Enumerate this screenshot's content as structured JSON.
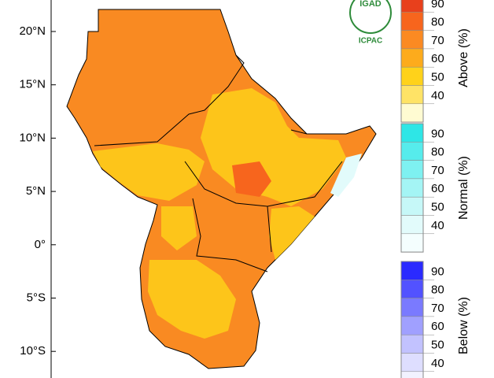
{
  "map": {
    "latitude_labels": [
      "20°N",
      "15°N",
      "10°N",
      "5°N",
      "0°",
      "5°S",
      "10°S"
    ],
    "logo": {
      "text": "IGAD",
      "caption": "ICPAC"
    },
    "legends": [
      {
        "title": "Above (%)",
        "levels": [
          90,
          80,
          70,
          60,
          50,
          40
        ],
        "colors": [
          "#e8401c",
          "#f7651d",
          "#fb8a22",
          "#fdab1c",
          "#ffd21a",
          "#ffe366",
          "#fffbd2"
        ]
      },
      {
        "title": "Normal (%)",
        "levels": [
          90,
          80,
          70,
          60,
          50,
          40
        ],
        "colors": [
          "#2ee6e6",
          "#56ecec",
          "#7ef1f1",
          "#a4f5f5",
          "#c6f8f8",
          "#e2fbfb",
          "#f4fefe"
        ]
      },
      {
        "title": "Below (%)",
        "levels": [
          90,
          80,
          70,
          60,
          50,
          40
        ],
        "colors": [
          "#2a2aff",
          "#5252ff",
          "#7a7aff",
          "#a0a0ff",
          "#c2c2ff",
          "#dedeff",
          "#f2f2ff"
        ]
      }
    ]
  }
}
